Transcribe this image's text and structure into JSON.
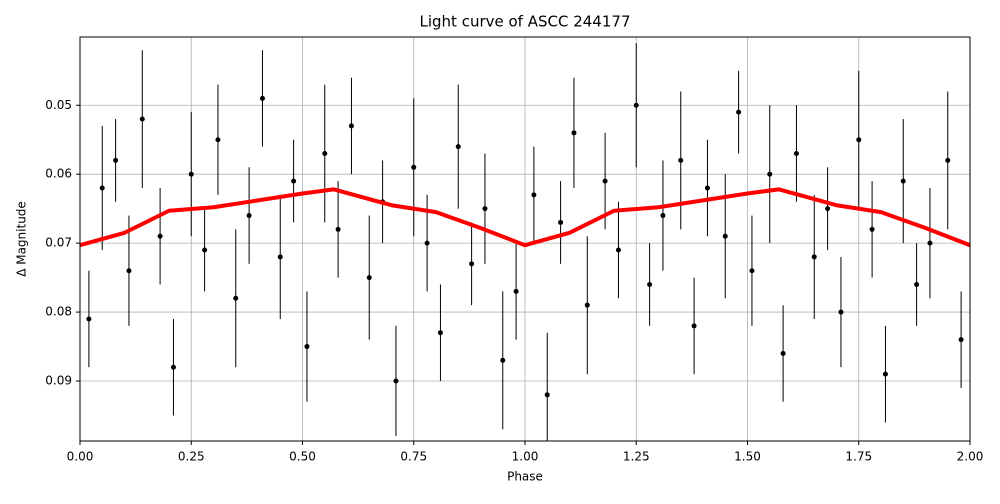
{
  "chart_data": {
    "type": "scatter",
    "title": "Light curve of ASCC 244177",
    "x_label": "Phase",
    "y_label": "Δ Magnitude",
    "xlim": [
      0,
      2
    ],
    "ylim": [
      0.0401,
      0.0987
    ],
    "y_inverted": true,
    "grid": true,
    "xticks": [
      {
        "value": 0,
        "label": "0.00"
      },
      {
        "value": 0.25,
        "label": "0.25"
      },
      {
        "value": 0.5,
        "label": "0.50"
      },
      {
        "value": 0.75,
        "label": "0.75"
      },
      {
        "value": 1,
        "label": "1.00"
      },
      {
        "value": 1.25,
        "label": "1.25"
      },
      {
        "value": 1.5,
        "label": "1.50"
      },
      {
        "value": 1.75,
        "label": "1.75"
      },
      {
        "value": 2,
        "label": "2.00"
      }
    ],
    "yticks": [
      0.05,
      0.06,
      0.07,
      0.08,
      0.09
    ],
    "series": [
      {
        "type": "errorbar",
        "color": "#000000",
        "x": [
          0.02,
          0.05,
          0.08,
          0.11,
          0.14,
          0.18,
          0.21,
          0.25,
          0.28,
          0.31,
          0.35,
          0.38,
          0.41,
          0.45,
          0.48,
          0.51,
          0.55,
          0.58,
          0.61,
          0.65,
          0.68,
          0.71,
          0.75,
          0.78,
          0.81,
          0.85,
          0.88,
          0.91,
          0.95,
          0.98,
          1.02,
          1.05,
          1.08,
          1.11,
          1.14,
          1.18,
          1.21,
          1.25,
          1.28,
          1.31,
          1.35,
          1.38,
          1.41,
          1.45,
          1.48,
          1.51,
          1.55,
          1.58,
          1.61,
          1.65,
          1.68,
          1.71,
          1.75,
          1.78,
          1.81,
          1.85,
          1.88,
          1.91,
          1.95,
          1.98
        ],
        "values": [
          0.081,
          0.062,
          0.058,
          0.074,
          0.052,
          0.069,
          0.088,
          0.06,
          0.071,
          0.055,
          0.078,
          0.066,
          0.049,
          0.072,
          0.061,
          0.085,
          0.057,
          0.068,
          0.053,
          0.075,
          0.064,
          0.09,
          0.059,
          0.07,
          0.083,
          0.056,
          0.073,
          0.065,
          0.087,
          0.077,
          0.063,
          0.092,
          0.067,
          0.054,
          0.079,
          0.061,
          0.071,
          0.05,
          0.076,
          0.066,
          0.058,
          0.082,
          0.062,
          0.069,
          0.051,
          0.074,
          0.06,
          0.086,
          0.057,
          0.072,
          0.065,
          0.08,
          0.055,
          0.068,
          0.089,
          0.061,
          0.076,
          0.07,
          0.058,
          0.084
        ],
        "errors": [
          0.007,
          0.009,
          0.006,
          0.008,
          0.01,
          0.007,
          0.007,
          0.009,
          0.006,
          0.008,
          0.01,
          0.007,
          0.007,
          0.009,
          0.006,
          0.008,
          0.01,
          0.007,
          0.007,
          0.009,
          0.006,
          0.008,
          0.01,
          0.007,
          0.007,
          0.009,
          0.006,
          0.008,
          0.01,
          0.007,
          0.007,
          0.009,
          0.006,
          0.008,
          0.01,
          0.007,
          0.007,
          0.009,
          0.006,
          0.008,
          0.01,
          0.007,
          0.007,
          0.009,
          0.006,
          0.008,
          0.01,
          0.007,
          0.007,
          0.009,
          0.006,
          0.008,
          0.01,
          0.007,
          0.007,
          0.009,
          0.006,
          0.008,
          0.01,
          0.007
        ]
      },
      {
        "type": "line",
        "color": "#ff0000",
        "x": [
          0,
          0.1,
          0.2,
          0.3,
          0.4,
          0.5,
          0.57,
          0.7,
          0.8,
          0.9,
          1.0,
          1.1,
          1.2,
          1.3,
          1.4,
          1.5,
          1.57,
          1.7,
          1.8,
          1.9,
          2.0
        ],
        "values": [
          0.0703,
          0.0685,
          0.0653,
          0.0648,
          0.0638,
          0.0628,
          0.0622,
          0.0645,
          0.0655,
          0.0678,
          0.0703,
          0.0685,
          0.0653,
          0.0648,
          0.0638,
          0.0628,
          0.0622,
          0.0645,
          0.0655,
          0.0678,
          0.0703
        ]
      }
    ]
  }
}
